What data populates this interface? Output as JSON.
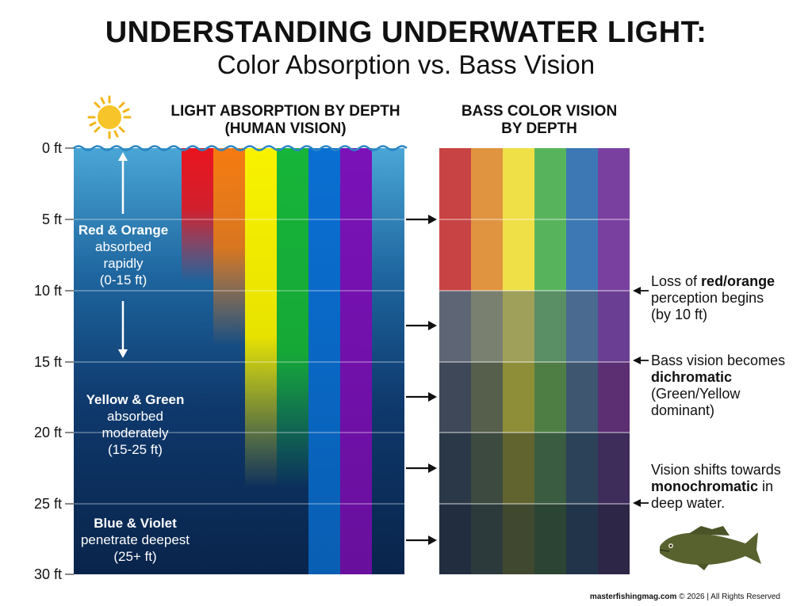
{
  "title": "UNDERSTANDING UNDERWATER LIGHT:",
  "subtitle": "Color Absorption vs. Bass Vision",
  "left_panel": {
    "title_line1": "LIGHT ABSORPTION BY DEPTH",
    "title_line2": "(HUMAN VISION)",
    "annotations": [
      {
        "lines": [
          "Red & Orange",
          "absorbed",
          "rapidly",
          "(0-15 ft)"
        ]
      },
      {
        "lines": [
          "Yellow & Green",
          "absorbed",
          "moderately",
          "(15-25 ft)"
        ]
      },
      {
        "lines": [
          "Blue & Violet",
          "penetrate deepest",
          "(25+ ft)"
        ]
      }
    ]
  },
  "right_panel": {
    "title_line1": "BASS COLOR VISION",
    "title_line2": "BY DEPTH"
  },
  "depth_labels": [
    "0 ft",
    "5 ft",
    "10 ft",
    "15 ft",
    "20 ft",
    "25 ft",
    "30 ft"
  ],
  "notes": [
    {
      "pre": "Loss of ",
      "bold": "red/orange",
      "post_lines": [
        "perception begins",
        "(by 10 ft)"
      ]
    },
    {
      "pre": "Bass vision becomes",
      "bold": "dichromatic",
      "post_lines": [
        "(Green/Yellow",
        "dominant)"
      ]
    },
    {
      "pre": "Vision shifts towards",
      "bold": "monochromatic",
      "bold_suffix": " in",
      "post_lines": [
        "deep water."
      ]
    }
  ],
  "footer": {
    "site": "masterfishingmag.com",
    "rest": " © 2026 | All Rights Reserved"
  },
  "colors": {
    "spectrum": [
      "#e8141e",
      "#f57a10",
      "#f8f200",
      "#17b53a",
      "#0a6fd2",
      "#7a12b8"
    ],
    "bass_shallow": [
      "#c84444",
      "#e09440",
      "#efe048",
      "#58b45c",
      "#3d78b4",
      "#7a40a0"
    ],
    "water_top": "#4aa6d6",
    "water_bottom": "#0a2a58"
  }
}
